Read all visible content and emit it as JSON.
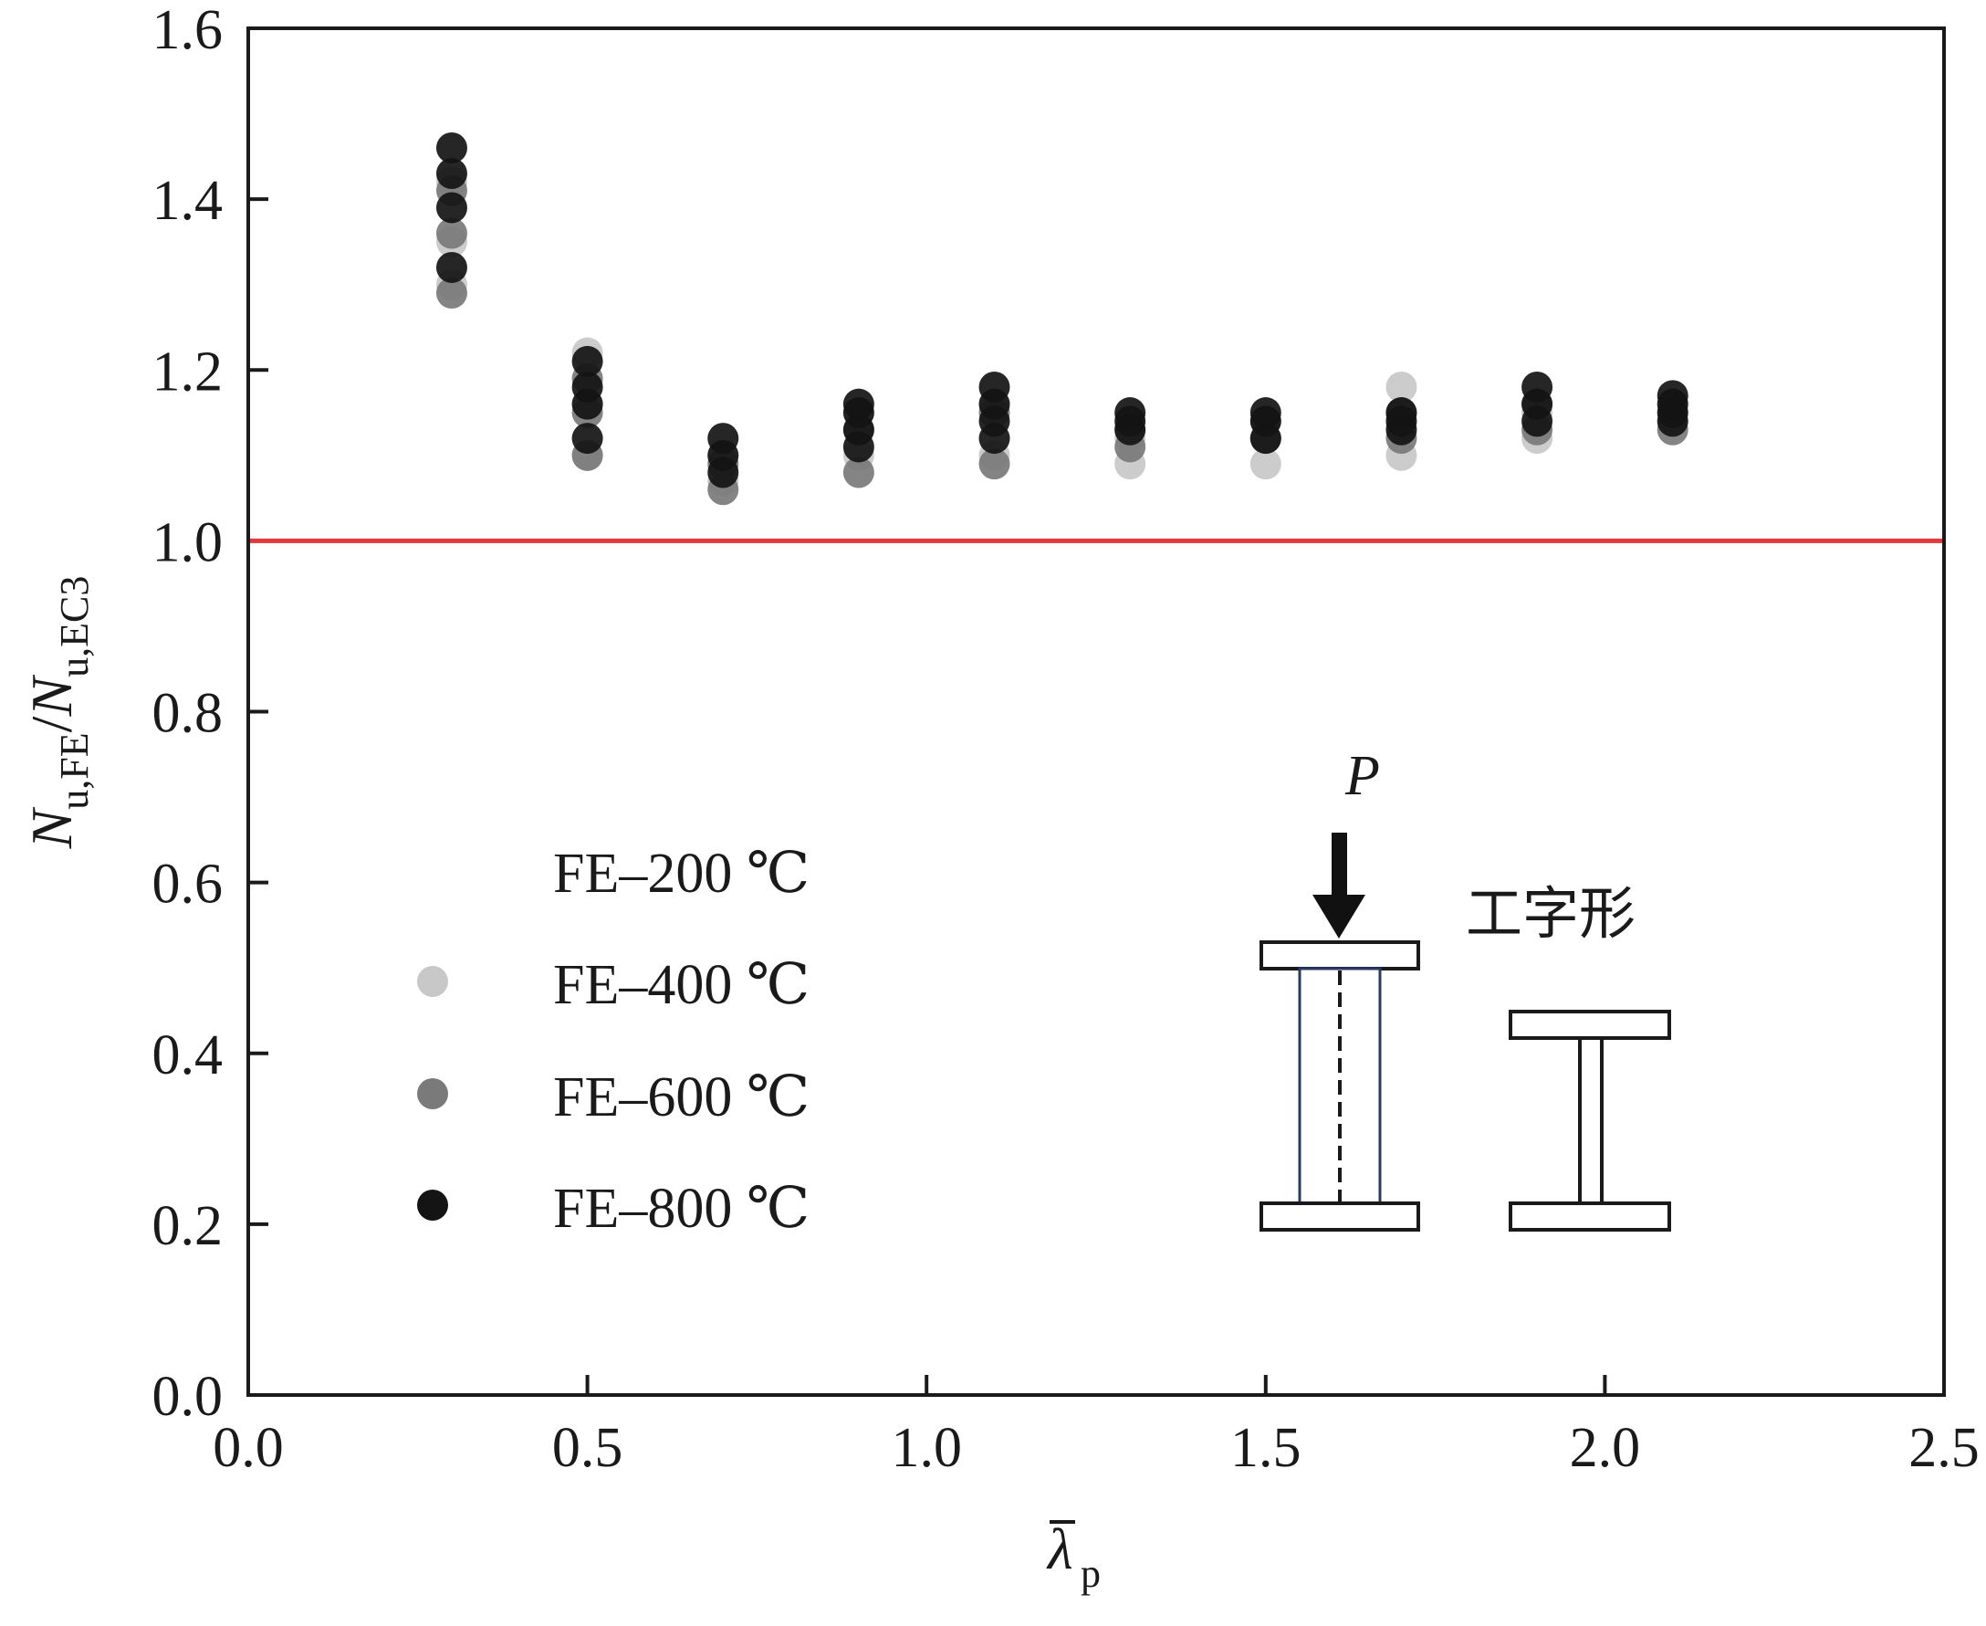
{
  "chart_data": {
    "type": "scatter",
    "title": "",
    "xlim": [
      0.0,
      2.5
    ],
    "ylim": [
      0.0,
      1.6
    ],
    "x_ticks": [
      "0.0",
      "0.5",
      "1.0",
      "1.5",
      "2.0",
      "2.5"
    ],
    "y_ticks": [
      "0.0",
      "0.2",
      "0.4",
      "0.6",
      "0.8",
      "1.0",
      "1.2",
      "1.4",
      "1.6"
    ],
    "xlabel": {
      "main": "λ",
      "sub": "p",
      "overbar": true
    },
    "ylabel": {
      "n1": "N",
      "s1": "u,FE",
      "slash": "/",
      "n2": "N",
      "s2": "u,EC3"
    },
    "reference_line": {
      "y": 1.0,
      "color": "#e23a3a"
    },
    "grid": false,
    "legend_position": "left-middle",
    "series": [
      {
        "name": "FE–200 ℃",
        "color": "#ffffff",
        "points": [
          [
            0.3,
            1.42
          ],
          [
            0.5,
            1.21
          ],
          [
            0.7,
            1.1
          ],
          [
            0.9,
            1.13
          ],
          [
            1.1,
            1.14
          ],
          [
            1.3,
            1.12
          ],
          [
            1.5,
            1.12
          ],
          [
            1.7,
            1.14
          ],
          [
            1.9,
            1.15
          ],
          [
            2.1,
            1.15
          ]
        ]
      },
      {
        "name": "FE–400 ℃",
        "color": "#c8c8c8",
        "points": [
          [
            0.3,
            1.3
          ],
          [
            0.3,
            1.35
          ],
          [
            0.3,
            1.42
          ],
          [
            0.5,
            1.1
          ],
          [
            0.5,
            1.16
          ],
          [
            0.5,
            1.22
          ],
          [
            0.7,
            1.07
          ],
          [
            0.7,
            1.1
          ],
          [
            0.9,
            1.1
          ],
          [
            0.9,
            1.15
          ],
          [
            1.1,
            1.1
          ],
          [
            1.1,
            1.16
          ],
          [
            1.3,
            1.09
          ],
          [
            1.3,
            1.12
          ],
          [
            1.5,
            1.09
          ],
          [
            1.5,
            1.12
          ],
          [
            1.7,
            1.1
          ],
          [
            1.7,
            1.14
          ],
          [
            1.7,
            1.18
          ],
          [
            1.9,
            1.12
          ],
          [
            1.9,
            1.15
          ],
          [
            2.1,
            1.14
          ],
          [
            2.1,
            1.16
          ]
        ]
      },
      {
        "name": "FE–600 ℃",
        "color": "#7a7a7a",
        "points": [
          [
            0.3,
            1.29
          ],
          [
            0.3,
            1.36
          ],
          [
            0.3,
            1.41
          ],
          [
            0.5,
            1.1
          ],
          [
            0.5,
            1.15
          ],
          [
            0.5,
            1.19
          ],
          [
            0.7,
            1.06
          ],
          [
            0.7,
            1.09
          ],
          [
            0.9,
            1.08
          ],
          [
            0.9,
            1.13
          ],
          [
            1.1,
            1.09
          ],
          [
            1.1,
            1.15
          ],
          [
            1.3,
            1.11
          ],
          [
            1.3,
            1.13
          ],
          [
            1.5,
            1.12
          ],
          [
            1.5,
            1.14
          ],
          [
            1.7,
            1.12
          ],
          [
            1.7,
            1.15
          ],
          [
            1.9,
            1.13
          ],
          [
            1.9,
            1.16
          ],
          [
            2.1,
            1.13
          ],
          [
            2.1,
            1.15
          ]
        ]
      },
      {
        "name": "FE–800 ℃",
        "color": "#141414",
        "points": [
          [
            0.3,
            1.32
          ],
          [
            0.3,
            1.39
          ],
          [
            0.3,
            1.43
          ],
          [
            0.3,
            1.46
          ],
          [
            0.5,
            1.12
          ],
          [
            0.5,
            1.16
          ],
          [
            0.5,
            1.18
          ],
          [
            0.5,
            1.21
          ],
          [
            0.7,
            1.08
          ],
          [
            0.7,
            1.1
          ],
          [
            0.7,
            1.12
          ],
          [
            0.9,
            1.11
          ],
          [
            0.9,
            1.13
          ],
          [
            0.9,
            1.15
          ],
          [
            0.9,
            1.16
          ],
          [
            1.1,
            1.12
          ],
          [
            1.1,
            1.14
          ],
          [
            1.1,
            1.16
          ],
          [
            1.1,
            1.18
          ],
          [
            1.3,
            1.13
          ],
          [
            1.3,
            1.14
          ],
          [
            1.3,
            1.15
          ],
          [
            1.5,
            1.12
          ],
          [
            1.5,
            1.14
          ],
          [
            1.5,
            1.15
          ],
          [
            1.7,
            1.13
          ],
          [
            1.7,
            1.14
          ],
          [
            1.7,
            1.15
          ],
          [
            1.9,
            1.14
          ],
          [
            1.9,
            1.16
          ],
          [
            1.9,
            1.18
          ],
          [
            2.1,
            1.14
          ],
          [
            2.1,
            1.15
          ],
          [
            2.1,
            1.16
          ],
          [
            2.1,
            1.17
          ]
        ]
      }
    ]
  },
  "diagram": {
    "load_label": "P",
    "section_label": "工字形"
  }
}
